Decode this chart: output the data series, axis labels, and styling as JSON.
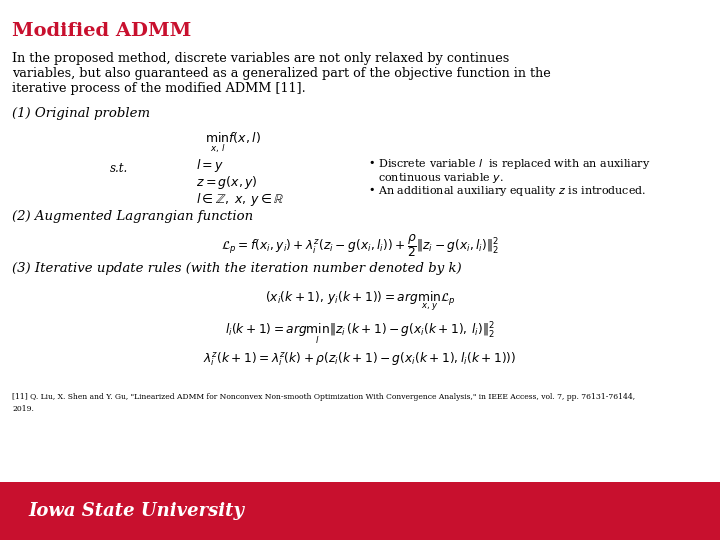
{
  "title": "Modified ADMM",
  "title_color": "#C8102E",
  "body_line1": "In the proposed method, discrete variables are not only relaxed by continues",
  "body_line2": "variables, but also guaranteed as a generalized part of the objective function in the",
  "body_line3": "iterative process of the modified ADMM [11].",
  "section1": "(1) Original problem",
  "section2": "(2) Augmented Lagrangian function",
  "section3": "(3) Iterative update rules (with the iteration number denoted by k)",
  "formula_min": "$\\min_{x,\\,l} f(x, l)$",
  "formula_st": "s.t.",
  "formula_l": "$l = y$",
  "formula_z": "$z = g(x, y)$",
  "formula_set": "$l \\in \\mathbb{Z},\\; x,\\, y \\in \\mathbb{R}$",
  "bullet1a": "Discrete variable $l$  is replaced with an auxiliary",
  "bullet1b": "continuous variable $y$.",
  "bullet2": "An additional auxiliary equality $z$ is introduced.",
  "formula_lagrangian": "$\\mathcal{L}_p = f(x_i, y_i) + \\lambda_i^z(z_i - g(x_i, l_i)) + \\dfrac{\\rho}{2}\\|z_i - g(x_i, l_i)\\|_2^2$",
  "formula_u1": "$(x_i(k+1),\\, y_i(k+1)) = arg\\min_{x,\\,y}\\mathcal{L}_p$",
  "formula_u2": "$l_i(k+1) = arg\\min_{l}\\|z_i(k+1) - g(x_i(k+1),\\, l_i)\\|_2^2$",
  "formula_u3": "$\\lambda_i^z(k+1) = \\lambda_i^z(k) + \\rho(z_i(k+1) - g(x_i(k+1), l_i(k+1)))$",
  "footnote1": "[11] Q. Liu, X. Shen and Y. Gu, \"Linearized ADMM for Nonconvex Non-smooth Optimization With Convergence Analysis,\" in IEEE Access, vol. 7, pp. 76131-76144,",
  "footnote2": "2019.",
  "footer_bg": "#C8102E",
  "footer_text": "Iowa State University",
  "footer_text_color": "#FFFFFF",
  "bg_color": "#FFFFFF",
  "text_color": "#000000"
}
